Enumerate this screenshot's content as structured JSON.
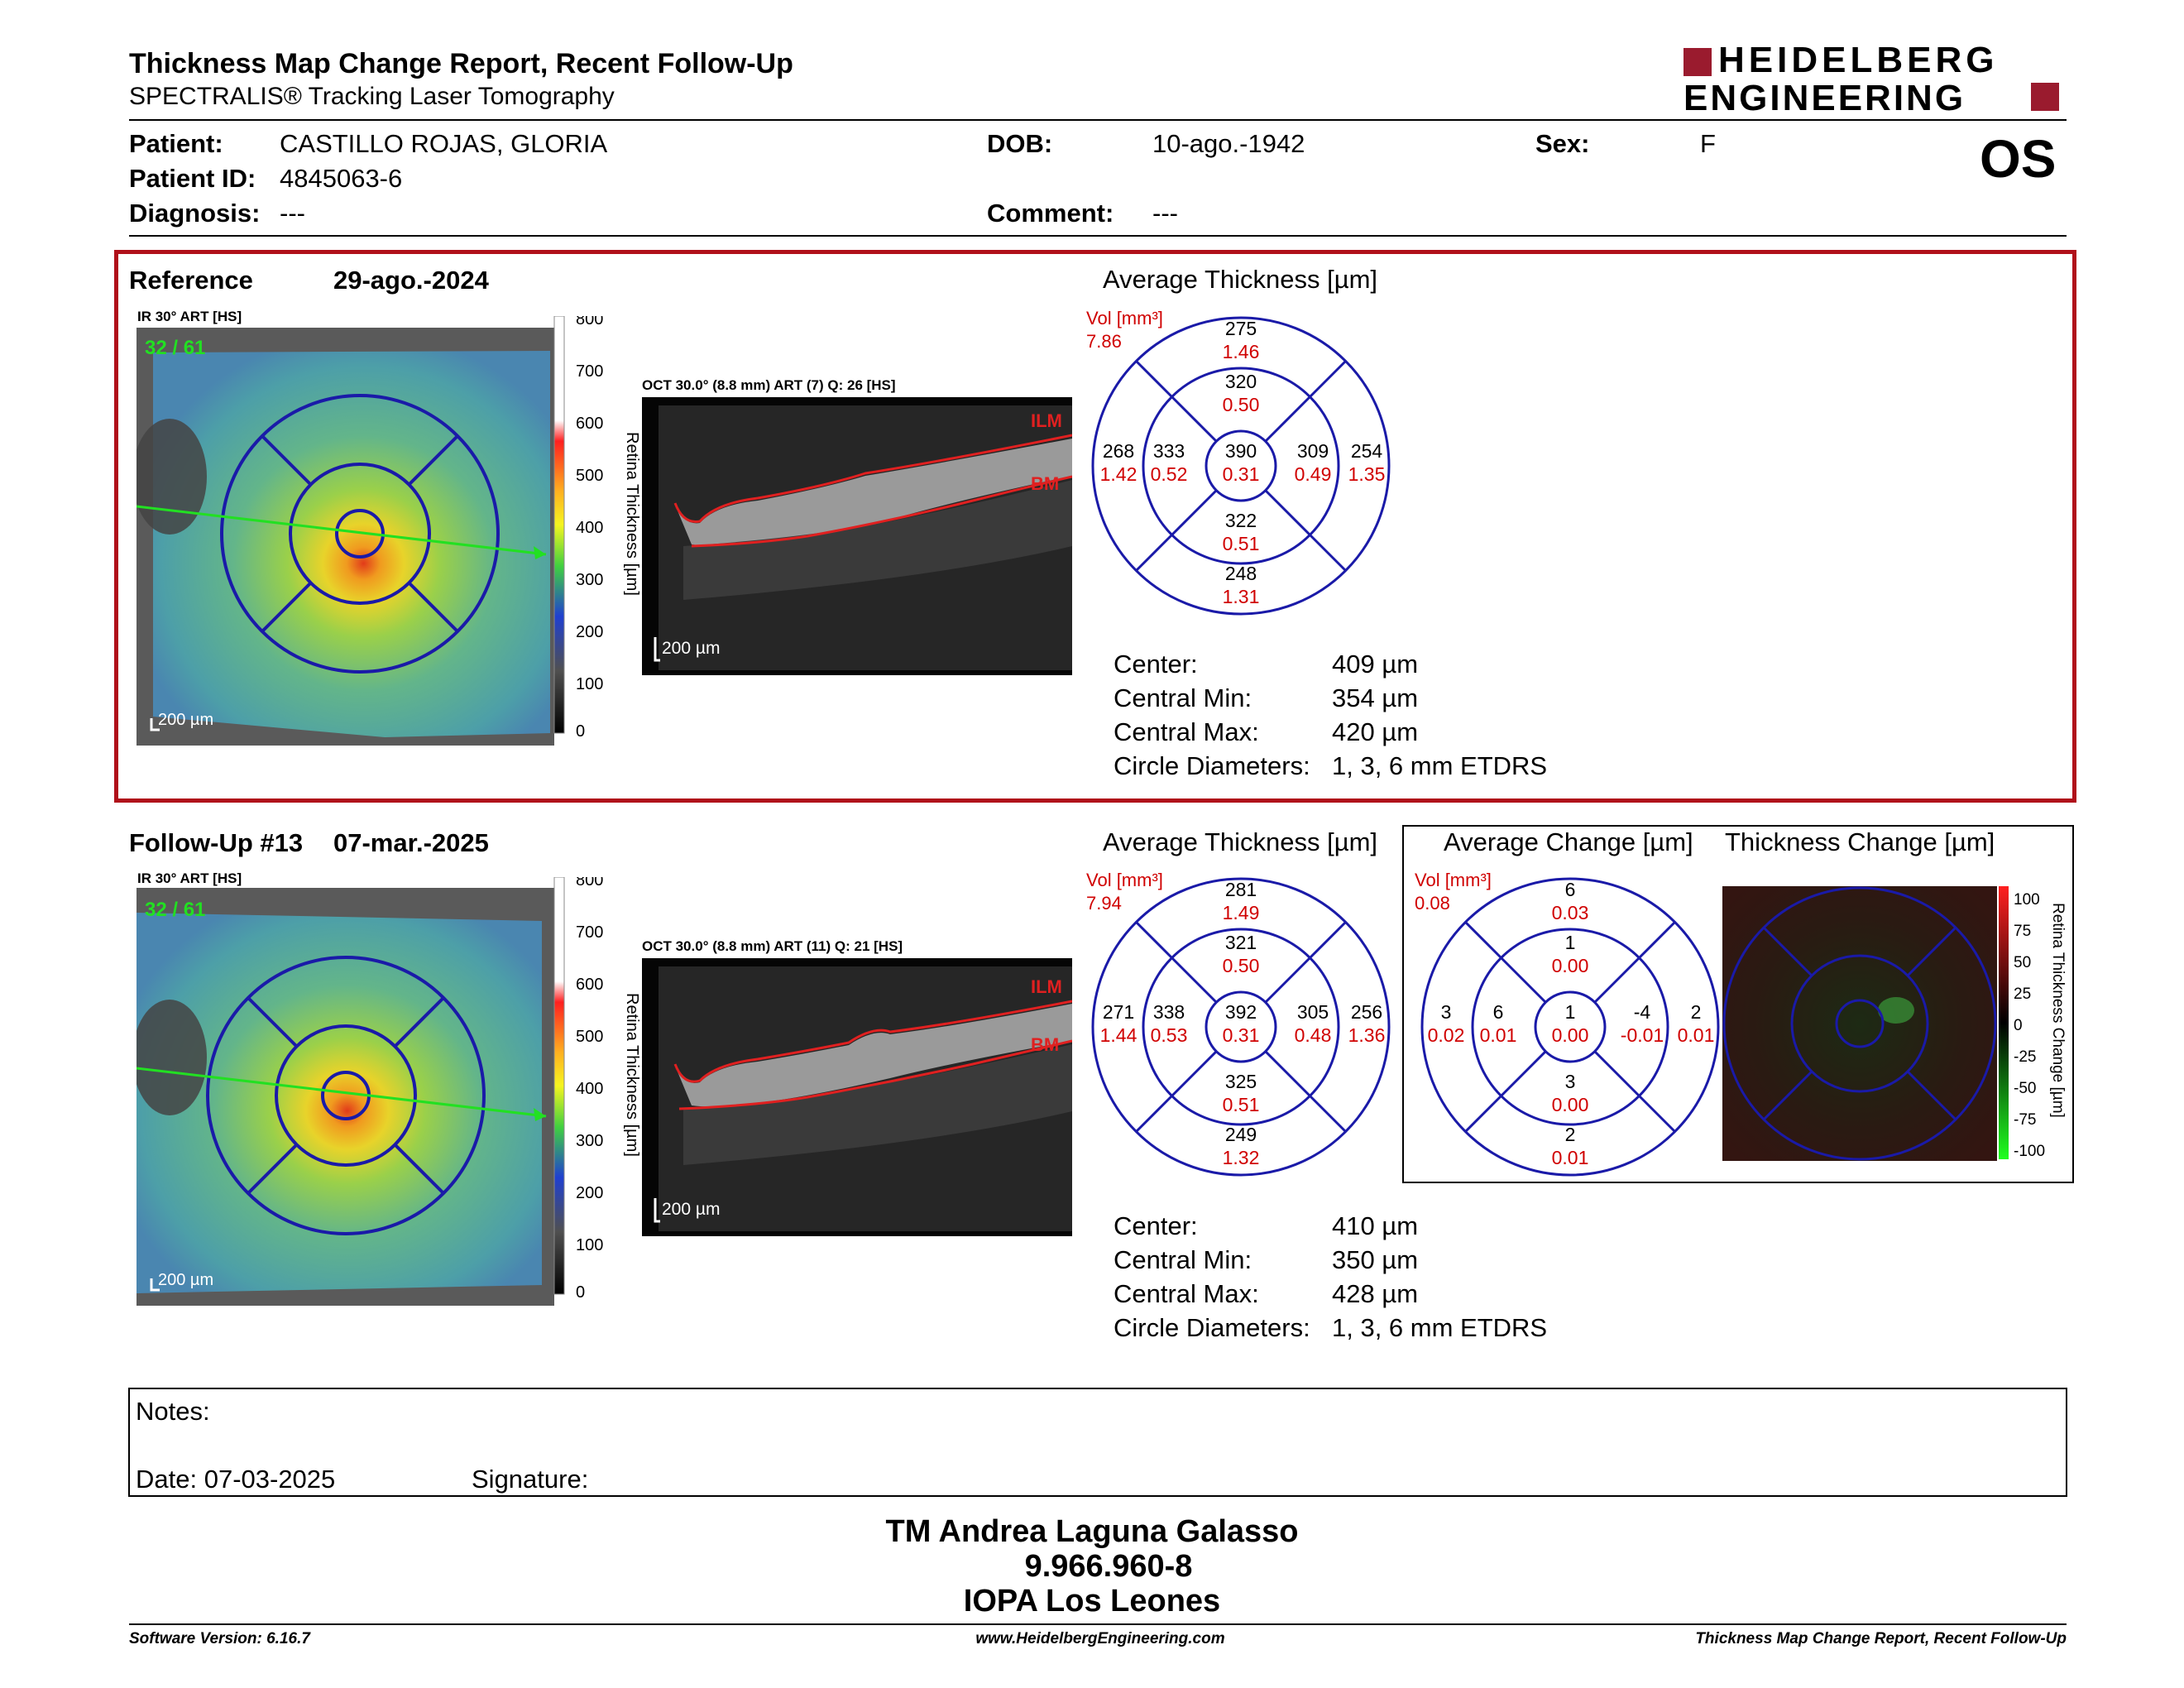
{
  "header": {
    "title": "Thickness Map Change Report, Recent Follow-Up",
    "subtitle": "SPECTRALIS® Tracking Laser Tomography",
    "logo_line1": "HEIDELBERG",
    "logo_line2": "ENGINEERING",
    "eye": "OS"
  },
  "patient": {
    "patient_label": "Patient:",
    "patient_value": "CASTILLO ROJAS, GLORIA",
    "id_label": "Patient ID:",
    "id_value": "4845063-6",
    "diagnosis_label": "Diagnosis:",
    "diagnosis_value": "---",
    "dob_label": "DOB:",
    "dob_value": "10-ago.-1942",
    "comment_label": "Comment:",
    "comment_value": "---",
    "sex_label": "Sex:",
    "sex_value": "F"
  },
  "reference": {
    "label": "Reference",
    "date": "29-ago.-2024",
    "ir_label": "IR 30° ART [HS]",
    "ir_counter": "32 / 61",
    "scale_label": "200 µm",
    "oct_label": "OCT 30.0° (8.8 mm) ART (7) Q: 26 [HS]",
    "oct_scale": "200 µm",
    "ilm": "ILM",
    "bm": "BM",
    "colorbar_title": "Retina Thickness [µm]",
    "colorbar_ticks": [
      "800",
      "700",
      "600",
      "500",
      "400",
      "300",
      "200",
      "100",
      "0"
    ],
    "avg_title": "Average Thickness [µm]",
    "vol_label": "Vol [mm³]",
    "vol_value": "7.86",
    "etdrs": {
      "top_outer": [
        "275",
        "1.46"
      ],
      "top_inner": [
        "320",
        "0.50"
      ],
      "left_outer": [
        "268",
        "1.42"
      ],
      "left_inner": [
        "333",
        "0.52"
      ],
      "center": [
        "390",
        "0.31"
      ],
      "right_inner": [
        "309",
        "0.49"
      ],
      "right_outer": [
        "254",
        "1.35"
      ],
      "bottom_inner": [
        "322",
        "0.51"
      ],
      "bottom_outer": [
        "248",
        "1.31"
      ]
    },
    "stats": [
      [
        "Center:",
        "409 µm"
      ],
      [
        "Central Min:",
        "354 µm"
      ],
      [
        "Central Max:",
        "420 µm"
      ],
      [
        "Circle Diameters:",
        "1, 3, 6 mm ETDRS"
      ]
    ]
  },
  "followup": {
    "label": "Follow-Up #13",
    "date": "07-mar.-2025",
    "ir_label": "IR 30° ART [HS]",
    "ir_counter": "32 / 61",
    "scale_label": "200 µm",
    "oct_label": "OCT 30.0° (8.8 mm) ART (11) Q: 21 [HS]",
    "oct_scale": "200 µm",
    "ilm": "ILM",
    "bm": "BM",
    "colorbar_title": "Retina Thickness [µm]",
    "colorbar_ticks": [
      "800",
      "700",
      "600",
      "500",
      "400",
      "300",
      "200",
      "100",
      "0"
    ],
    "avg_title": "Average Thickness [µm]",
    "vol_label": "Vol [mm³]",
    "vol_value": "7.94",
    "etdrs": {
      "top_outer": [
        "281",
        "1.49"
      ],
      "top_inner": [
        "321",
        "0.50"
      ],
      "left_outer": [
        "271",
        "1.44"
      ],
      "left_inner": [
        "338",
        "0.53"
      ],
      "center": [
        "392",
        "0.31"
      ],
      "right_inner": [
        "305",
        "0.48"
      ],
      "right_outer": [
        "256",
        "1.36"
      ],
      "bottom_inner": [
        "325",
        "0.51"
      ],
      "bottom_outer": [
        "249",
        "1.32"
      ]
    },
    "stats": [
      [
        "Center:",
        "410 µm"
      ],
      [
        "Central Min:",
        "350 µm"
      ],
      [
        "Central Max:",
        "428 µm"
      ],
      [
        "Circle Diameters:",
        "1, 3, 6 mm ETDRS"
      ]
    ],
    "change_title": "Average Change [µm]",
    "change_vol_label": "Vol [mm³]",
    "change_vol_value": "0.08",
    "change_etdrs": {
      "top_outer": [
        "6",
        "0.03"
      ],
      "top_inner": [
        "1",
        "0.00"
      ],
      "left_outer": [
        "3",
        "0.02"
      ],
      "left_inner": [
        "6",
        "0.01"
      ],
      "center": [
        "1",
        "0.00"
      ],
      "right_inner": [
        "-4",
        "-0.01"
      ],
      "right_outer": [
        "2",
        "0.01"
      ],
      "bottom_inner": [
        "3",
        "0.00"
      ],
      "bottom_outer": [
        "2",
        "0.01"
      ]
    },
    "thick_change_title": "Thickness Change [µm]",
    "change_bar_title": "Retina Thickness Change [µm]",
    "change_ticks": [
      "100",
      "75",
      "50",
      "25",
      "0",
      "-25",
      "-50",
      "-75",
      "-100"
    ]
  },
  "notes": {
    "notes_label": "Notes:",
    "date_label": "Date: 07-03-2025",
    "signature_label": "Signature:"
  },
  "signer": {
    "name": "TM Andrea Laguna Galasso",
    "id": "9.966.960-8",
    "org": "IOPA Los Leones"
  },
  "footer": {
    "software": "Software Version: 6.16.7",
    "website": "www.HeidelbergEngineering.com",
    "report": "Thickness Map Change Report, Recent Follow-Up"
  },
  "colors": {
    "brand_red": "#9a1b2e",
    "value_red": "#d00000",
    "grid_blue": "#1a1aa8",
    "box_red": "#b0101a"
  }
}
